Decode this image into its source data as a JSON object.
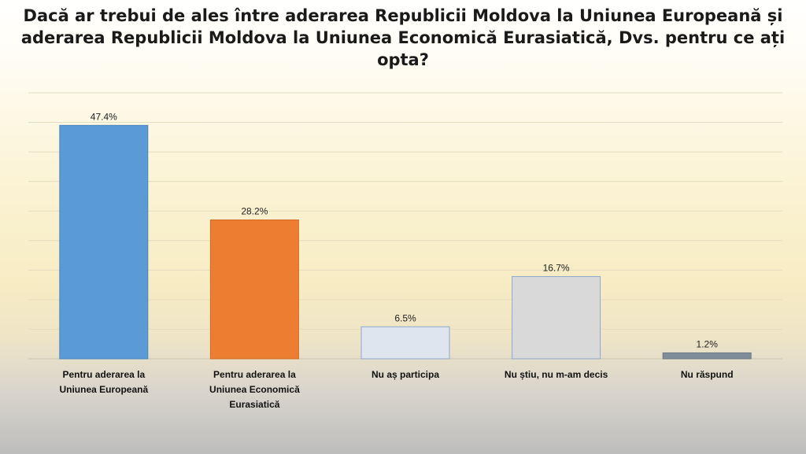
{
  "chart_data": {
    "type": "bar",
    "title": "Dacă ar trebui de ales între aderarea Republicii Moldova la Uniunea Europeană și aderarea Republicii Moldova la Uniunea Economică Eurasiatică, Dvs. pentru ce ați opta?",
    "categories": [
      "Pentru aderarea la Uniunea Europeană",
      "Pentru aderarea la Uniunea Economică Eurasiatică",
      "Nu aș participa",
      "Nu știu, nu m-am decis",
      "Nu răspund"
    ],
    "category_lines": [
      [
        "Pentru aderarea la",
        "Uniunea Europeană"
      ],
      [
        "Pentru aderarea la",
        "Uniunea Economică",
        "Eurasiatică"
      ],
      [
        "Nu aș participa"
      ],
      [
        "Nu știu, nu m-am decis"
      ],
      [
        "Nu răspund"
      ]
    ],
    "values": [
      47.4,
      28.2,
      6.5,
      16.7,
      1.2
    ],
    "value_labels": [
      "47.4%",
      "28.2%",
      "6.5%",
      "16.7%",
      "1.2%"
    ],
    "colors": [
      "#5b9bd5",
      "#ed7d31",
      "#dfe5ef",
      "#d9d9d9",
      "#7f8c99"
    ],
    "border_colors": [
      "#4a86c0",
      "#d06a24",
      "#8fa8cc",
      "#8fa8cc",
      "#6d7885"
    ],
    "ylim": [
      0,
      54
    ],
    "xlabel": "",
    "ylabel": "",
    "grid": true,
    "legend": "none"
  },
  "title_text": "Dacă ar trebui de ales între aderarea Republicii Moldova la Uniunea Europeană și\naderarea Republicii Moldova la Uniunea Economică Eurasiatică, Dvs. pentru ce ați\nopta?"
}
